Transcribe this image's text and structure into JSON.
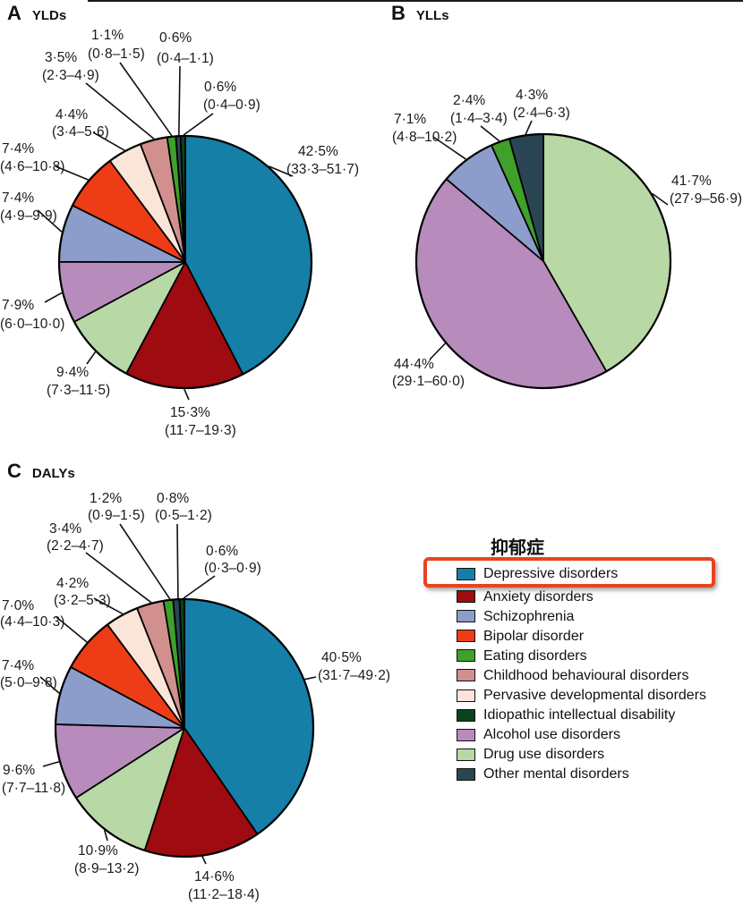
{
  "panel_a": {
    "letter": "A",
    "title": "YLDs"
  },
  "panel_b": {
    "letter": "B",
    "title": "YLLs"
  },
  "panel_c": {
    "letter": "C",
    "title": "DALYs"
  },
  "legend": {
    "title": "抑郁症",
    "highlight_box_color": "#E8431F",
    "highlighted_item": "Depressive disorders",
    "items": [
      {
        "label": "Depressive disorders",
        "color": "#157FA8",
        "highlighted": true
      },
      {
        "label": "Anxiety disorders",
        "color": "#9E0B10",
        "highlighted": false
      },
      {
        "label": "Schizophrenia",
        "color": "#8C9DCB",
        "highlighted": false
      },
      {
        "label": "Bipolar disorder",
        "color": "#EE3D16",
        "highlighted": false
      },
      {
        "label": "Eating disorders",
        "color": "#3FA02A",
        "highlighted": false
      },
      {
        "label": "Childhood behavioural disorders",
        "color": "#D18F8E",
        "highlighted": false
      },
      {
        "label": "Pervasive developmental disorders",
        "color": "#FBE5D8",
        "highlighted": false
      },
      {
        "label": "Idiopathic intellectual disability",
        "color": "#0A431C",
        "highlighted": false
      },
      {
        "label": "Alcohol use disorders",
        "color": "#B78CBC",
        "highlighted": false
      },
      {
        "label": "Drug use disorders",
        "color": "#B8D8A5",
        "highlighted": false
      },
      {
        "label": "Other mental disorders",
        "color": "#2A4654",
        "highlighted": false
      }
    ]
  },
  "chart_data": [
    {
      "type": "pie",
      "panel": "A",
      "title": "YLDs",
      "start_angle_deg": 0,
      "direction": "clockwise",
      "slices": [
        {
          "category": "Depressive disorders",
          "value": 42.5,
          "label": "42·5%",
          "ci": "(33·3–51·7)",
          "color": "#157FA8"
        },
        {
          "category": "Anxiety disorders",
          "value": 15.3,
          "label": "15·3%",
          "ci": "(11·7–19·3)",
          "color": "#9E0B10"
        },
        {
          "category": "Drug use disorders",
          "value": 9.4,
          "label": "9·4%",
          "ci": "(7·3–11·5)",
          "color": "#B8D8A5"
        },
        {
          "category": "Alcohol use disorders",
          "value": 7.9,
          "label": "7·9%",
          "ci": "(6·0–10·0)",
          "color": "#B78CBC"
        },
        {
          "category": "Schizophrenia",
          "value": 7.4,
          "label": "7·4%",
          "ci": "(4·9–9·9)",
          "color": "#8C9DCB"
        },
        {
          "category": "Bipolar disorder",
          "value": 7.4,
          "label": "7·4%",
          "ci": "(4·6–10·8)",
          "color": "#EE3D16"
        },
        {
          "category": "Pervasive developmental disorders",
          "value": 4.4,
          "label": "4·4%",
          "ci": "(3·4–5·6)",
          "color": "#FBE5D8"
        },
        {
          "category": "Childhood behavioural disorders",
          "value": 3.5,
          "label": "3·5%",
          "ci": "(2·3–4·9)",
          "color": "#D18F8E"
        },
        {
          "category": "Eating disorders",
          "value": 1.1,
          "label": "1·1%",
          "ci": "(0·8–1·5)",
          "color": "#3FA02A"
        },
        {
          "category": "Other mental disorders",
          "value": 0.6,
          "label": "0·6%",
          "ci": "(0·4–1·1)",
          "color": "#2A4654"
        },
        {
          "category": "Idiopathic intellectual disability",
          "value": 0.6,
          "label": "0·6%",
          "ci": "(0·4–0·9)",
          "color": "#0A431C"
        }
      ]
    },
    {
      "type": "pie",
      "panel": "B",
      "title": "YLLs",
      "start_angle_deg": 0,
      "direction": "clockwise",
      "slices": [
        {
          "category": "Drug use disorders",
          "value": 41.7,
          "label": "41·7%",
          "ci": "(27·9–56·9)",
          "color": "#B8D8A5"
        },
        {
          "category": "Alcohol use disorders",
          "value": 44.4,
          "label": "44·4%",
          "ci": "(29·1–60·0)",
          "color": "#B78CBC"
        },
        {
          "category": "Schizophrenia",
          "value": 7.1,
          "label": "7·1%",
          "ci": "(4·8–10·2)",
          "color": "#8C9DCB"
        },
        {
          "category": "Eating disorders",
          "value": 2.4,
          "label": "2·4%",
          "ci": "(1·4–3·4)",
          "color": "#3FA02A"
        },
        {
          "category": "Other mental disorders",
          "value": 4.3,
          "label": "4·3%",
          "ci": "(2·4–6·3)",
          "color": "#2A4654"
        }
      ]
    },
    {
      "type": "pie",
      "panel": "C",
      "title": "DALYs",
      "start_angle_deg": 0,
      "direction": "clockwise",
      "slices": [
        {
          "category": "Depressive disorders",
          "value": 40.5,
          "label": "40·5%",
          "ci": "(31·7–49·2)",
          "color": "#157FA8"
        },
        {
          "category": "Anxiety disorders",
          "value": 14.6,
          "label": "14·6%",
          "ci": "(11·2–18·4)",
          "color": "#9E0B10"
        },
        {
          "category": "Drug use disorders",
          "value": 10.9,
          "label": "10·9%",
          "ci": "(8·9–13·2)",
          "color": "#B8D8A5"
        },
        {
          "category": "Alcohol use disorders",
          "value": 9.6,
          "label": "9·6%",
          "ci": "(7·7–11·8)",
          "color": "#B78CBC"
        },
        {
          "category": "Schizophrenia",
          "value": 7.4,
          "label": "7·4%",
          "ci": "(5·0–9·8)",
          "color": "#8C9DCB"
        },
        {
          "category": "Bipolar disorder",
          "value": 7.0,
          "label": "7·0%",
          "ci": "(4·4–10·3)",
          "color": "#EE3D16"
        },
        {
          "category": "Pervasive developmental disorders",
          "value": 4.2,
          "label": "4·2%",
          "ci": "(3·2–5·3)",
          "color": "#FBE5D8"
        },
        {
          "category": "Childhood behavioural disorders",
          "value": 3.4,
          "label": "3·4%",
          "ci": "(2·2–4·7)",
          "color": "#D18F8E"
        },
        {
          "category": "Eating disorders",
          "value": 1.2,
          "label": "1·2%",
          "ci": "(0·9–1·5)",
          "color": "#3FA02A"
        },
        {
          "category": "Other mental disorders",
          "value": 0.8,
          "label": "0·8%",
          "ci": "(0·5–1·2)",
          "color": "#2A4654"
        },
        {
          "category": "Idiopathic intellectual disability",
          "value": 0.6,
          "label": "0·6%",
          "ci": "(0·3–0·9)",
          "color": "#0A431C"
        }
      ]
    }
  ]
}
